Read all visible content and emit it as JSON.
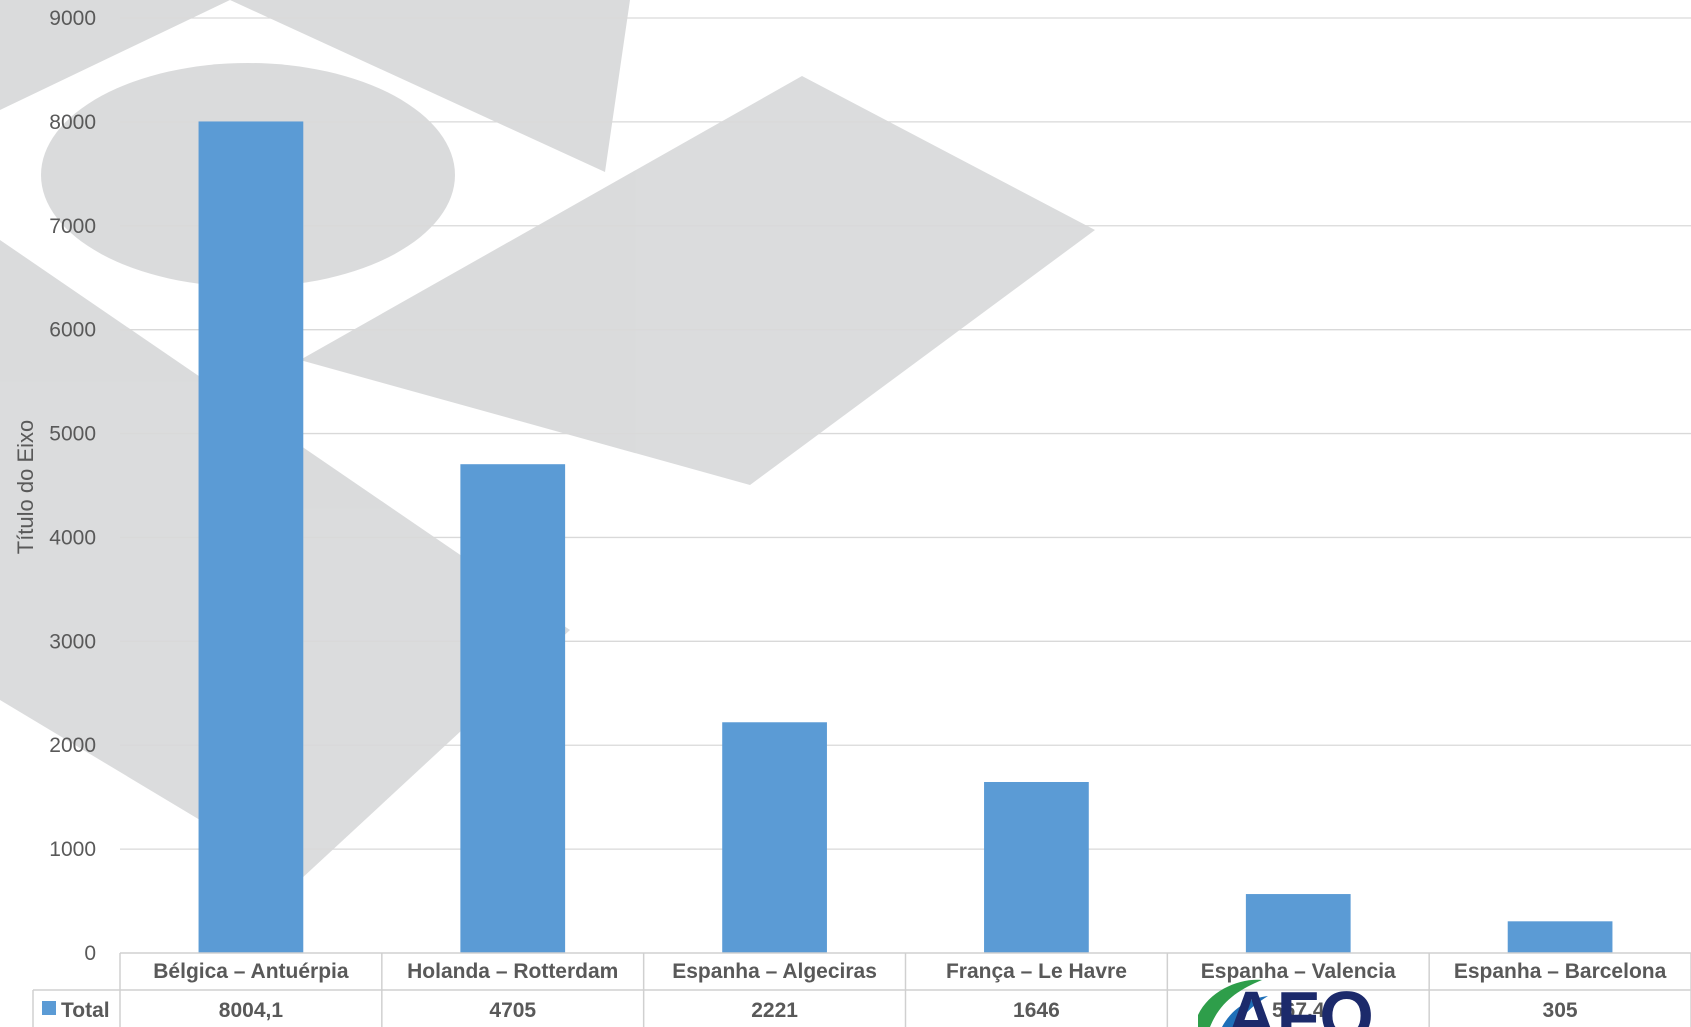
{
  "chart_data": {
    "type": "bar",
    "ylabel": "Título do Eixo",
    "ylim": [
      0,
      9000
    ],
    "yticks": [
      0,
      1000,
      2000,
      3000,
      4000,
      5000,
      6000,
      7000,
      8000,
      9000
    ],
    "grid": true,
    "categories": [
      "Bélgica – Antuérpia",
      "Holanda – Rotterdam",
      "Espanha – Algeciras",
      "França – Le Havre",
      "Espanha – Valencia",
      "Espanha – Barcelona"
    ],
    "series": [
      {
        "name": "Total",
        "values": [
          8004.1,
          4705,
          2221,
          1646,
          567.4,
          305
        ],
        "labels": [
          "8004,1",
          "4705",
          "2221",
          "1646",
          "567,4",
          "305"
        ]
      }
    ],
    "legend_placement": "data-table"
  },
  "colors": {
    "bar": "#5b9bd5",
    "grid": "#d9d9d9",
    "text": "#595959",
    "watermark": "#d9dadb"
  },
  "watermarks": {
    "background": "gray geometric shapes",
    "logo": "AFO"
  }
}
